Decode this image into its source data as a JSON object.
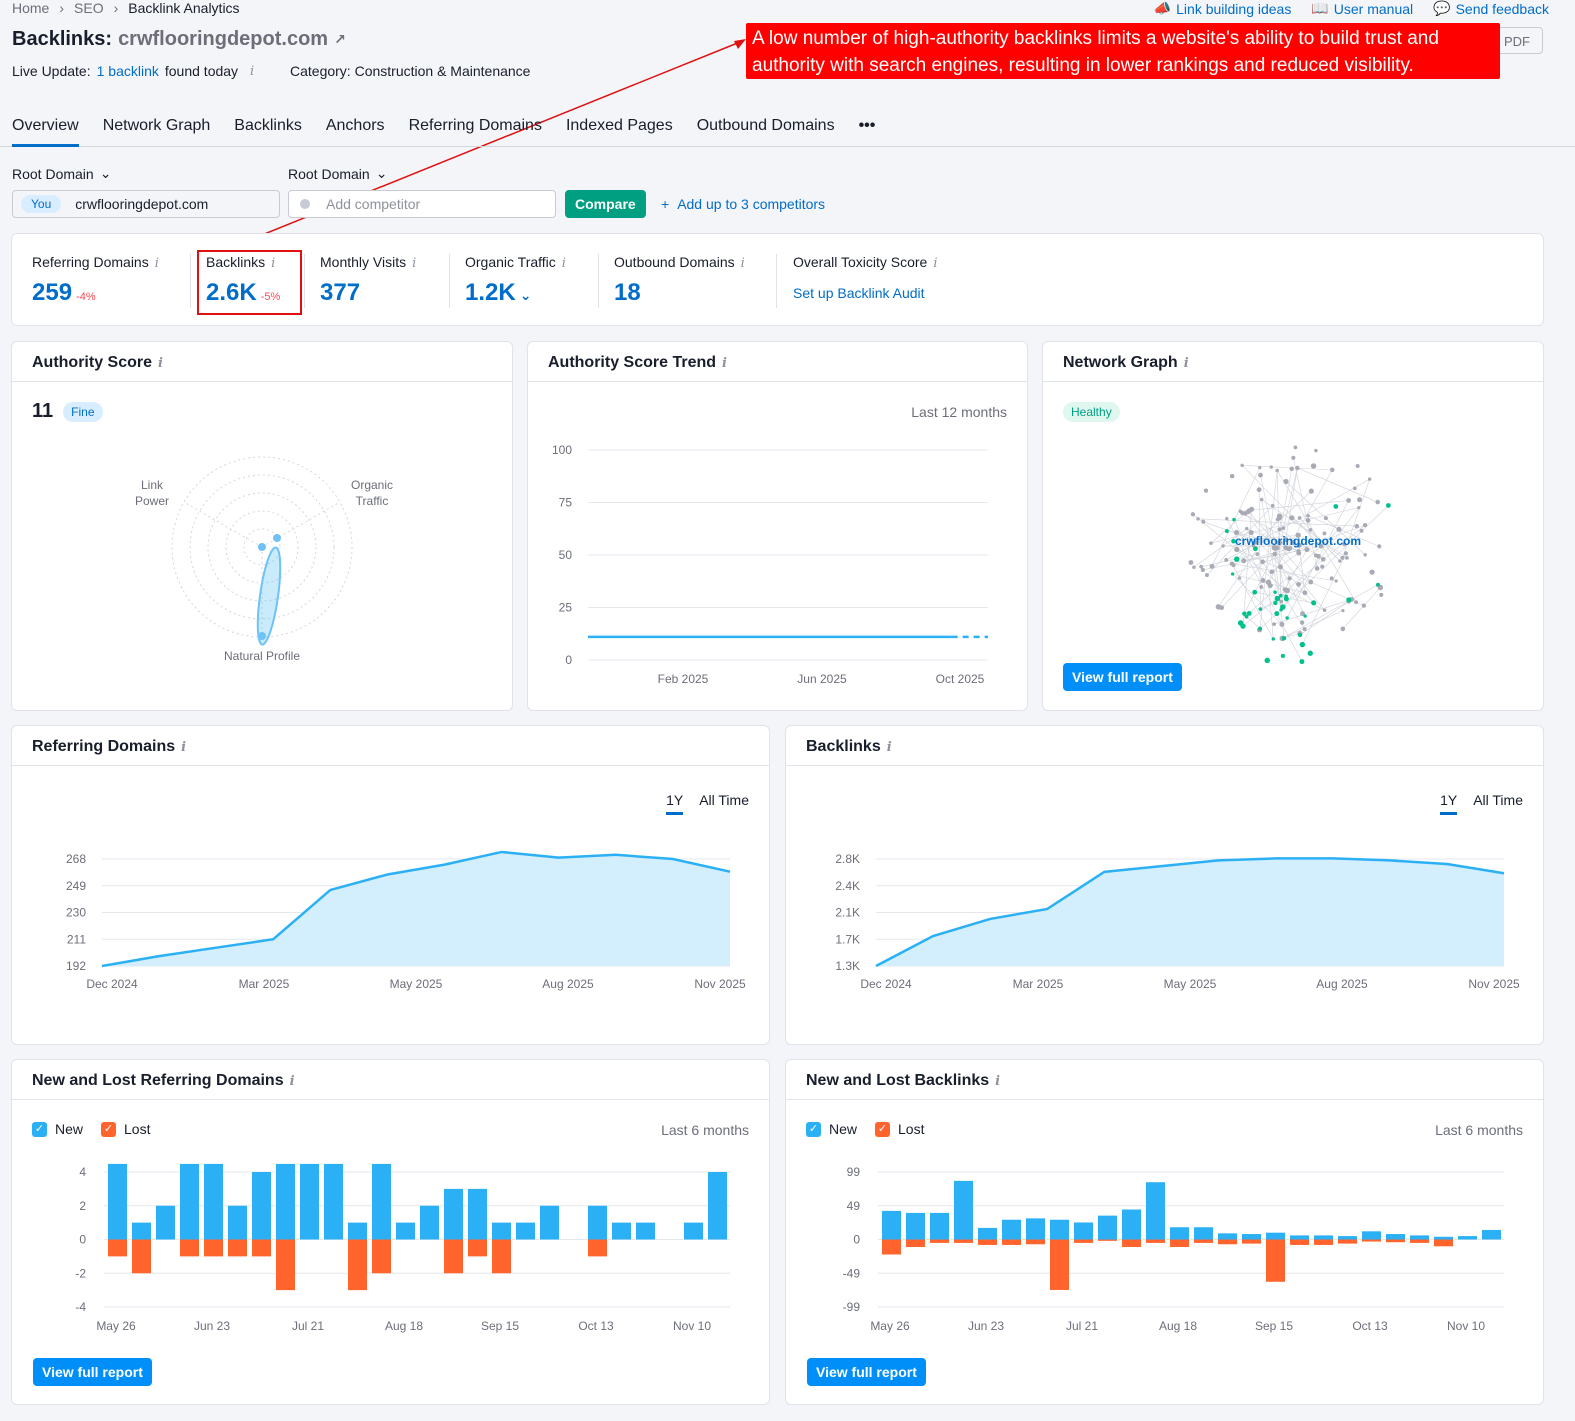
{
  "breadcrumb": {
    "home": "Home",
    "seo": "SEO",
    "current": "Backlink Analytics"
  },
  "toplinks": {
    "link_building": "Link building ideas",
    "manual": "User manual",
    "feedback": "Send feedback"
  },
  "header": {
    "prefix": "Backlinks:",
    "domain": "crwflooringdepot.com",
    "live_prefix": "Live Update:",
    "live_link": "1 backlink",
    "live_suffix": "found today",
    "category": "Category: Construction & Maintenance",
    "pdf": "PDF"
  },
  "annotation": "A low number of high-authority backlinks limits a website's ability to build trust and authority with search engines, resulting in lower rankings and reduced visibility.",
  "tabs": [
    "Overview",
    "Network Graph",
    "Backlinks",
    "Anchors",
    "Referring Domains",
    "Indexed Pages",
    "Outbound Domains",
    "•••"
  ],
  "compare": {
    "root1": "Root Domain",
    "root2": "Root Domain",
    "you": "You",
    "domain": "crwflooringdepot.com",
    "placeholder": "Add competitor",
    "button": "Compare",
    "add": "Add up to 3 competitors"
  },
  "metrics": {
    "rd": {
      "label": "Referring Domains",
      "value": "259",
      "delta": "-4%"
    },
    "bl": {
      "label": "Backlinks",
      "value": "2.6K",
      "delta": "-5%"
    },
    "mv": {
      "label": "Monthly Visits",
      "value": "377"
    },
    "ot": {
      "label": "Organic Traffic",
      "value": "1.2K"
    },
    "od": {
      "label": "Outbound Domains",
      "value": "18"
    },
    "tox": {
      "label": "Overall Toxicity Score",
      "link": "Set up Backlink Audit"
    }
  },
  "authority": {
    "title": "Authority Score",
    "score": "11",
    "badge": "Fine",
    "labels": {
      "lp1": "Link",
      "lp2": "Power",
      "ot1": "Organic",
      "ot2": "Traffic",
      "np": "Natural Profile"
    }
  },
  "trend": {
    "title": "Authority Score Trend",
    "period": "Last 12 months"
  },
  "network": {
    "title": "Network Graph",
    "badge": "Healthy",
    "domain": "crwflooringdepot.com",
    "button": "View full report"
  },
  "rd_chart": {
    "title": "Referring Domains",
    "r1": "1Y",
    "r2": "All Time"
  },
  "bl_chart": {
    "title": "Backlinks",
    "r1": "1Y",
    "r2": "All Time"
  },
  "nl_rd": {
    "title": "New and Lost Referring Domains",
    "new": "New",
    "lost": "Lost",
    "period": "Last 6 months",
    "button": "View full report"
  },
  "nl_bl": {
    "title": "New and Lost Backlinks",
    "new": "New",
    "lost": "Lost",
    "period": "Last 6 months",
    "button": "View full report"
  },
  "chart_data": [
    {
      "type": "line",
      "id": "trend",
      "title": "Authority Score Trend",
      "y_ticks": [
        0,
        25,
        50,
        75,
        100
      ],
      "ylim": [
        0,
        100
      ],
      "x_ticks": [
        "Feb 2025",
        "Jun 2025",
        "Oct 2025"
      ],
      "values": [
        11,
        11,
        11,
        11,
        11,
        11,
        11,
        11,
        11,
        11,
        11,
        11
      ]
    },
    {
      "type": "area",
      "id": "rd",
      "title": "Referring Domains",
      "y_ticks_labels": [
        "192",
        "211",
        "230",
        "249",
        "268"
      ],
      "ylim": [
        192,
        268
      ],
      "x_ticks": [
        "Dec 2024",
        "Mar 2025",
        "May 2025",
        "Aug 2025",
        "Nov 2025"
      ],
      "values": [
        192,
        199,
        205,
        211,
        246,
        257,
        264,
        273,
        269,
        271,
        268,
        259
      ]
    },
    {
      "type": "area",
      "id": "bl",
      "title": "Backlinks",
      "y_ticks_labels": [
        "1.3K",
        "1.7K",
        "2.1K",
        "2.4K",
        "2.8K"
      ],
      "ylim": [
        1300,
        2800
      ],
      "x_ticks": [
        "Dec 2024",
        "Mar 2025",
        "May 2025",
        "Aug 2025",
        "Nov 2025"
      ],
      "values": [
        1300,
        1720,
        1960,
        2100,
        2620,
        2700,
        2780,
        2820,
        2890,
        2780,
        2730,
        2600
      ]
    },
    {
      "type": "bar",
      "id": "nlrd",
      "title": "New and Lost Referring Domains",
      "y_ticks": [
        -4,
        -2,
        0,
        2,
        4
      ],
      "ylim": [
        -4,
        4
      ],
      "x_ticks": [
        "May 26",
        "Jun 23",
        "Jul 21",
        "Aug 18",
        "Sep 15",
        "Oct 13",
        "Nov 10"
      ],
      "series": [
        {
          "name": "New",
          "color": "#2bb0f5",
          "values": [
            5,
            1,
            2,
            5,
            5,
            2,
            4,
            5,
            5,
            5,
            1,
            5,
            1,
            2,
            3,
            3,
            1,
            1,
            2,
            0,
            2,
            1,
            1,
            0,
            1,
            4
          ]
        },
        {
          "name": "Lost",
          "color": "#ff642d",
          "values": [
            -1,
            -2,
            0,
            -1,
            -1,
            -1,
            -1,
            -3,
            0,
            0,
            -3,
            -2,
            0,
            0,
            -2,
            -1,
            -2,
            0,
            0,
            0,
            -1,
            0,
            0,
            0,
            0,
            0
          ]
        }
      ]
    },
    {
      "type": "bar",
      "id": "nlbl",
      "title": "New and Lost Backlinks",
      "y_ticks_labels": [
        "-99",
        "-49",
        "0",
        "49",
        "99"
      ],
      "ylim": [
        -99,
        99
      ],
      "x_ticks": [
        "May 26",
        "Jun 23",
        "Jul 21",
        "Aug 18",
        "Sep 15",
        "Oct 13",
        "Nov 10"
      ],
      "series": [
        {
          "name": "New",
          "color": "#2bb0f5",
          "values": [
            42,
            39,
            39,
            86,
            17,
            29,
            31,
            29,
            25,
            35,
            44,
            84,
            18,
            18,
            9,
            8,
            10,
            6,
            6,
            5,
            12,
            8,
            6,
            4,
            5,
            14
          ]
        },
        {
          "name": "Lost",
          "color": "#ff642d",
          "values": [
            -22,
            -11,
            -5,
            -5,
            -8,
            -8,
            -7,
            -74,
            -5,
            -2,
            -11,
            -5,
            -11,
            -5,
            -7,
            -6,
            -62,
            -8,
            -8,
            -6,
            -3,
            -4,
            -5,
            -10,
            0,
            0
          ]
        }
      ]
    }
  ]
}
